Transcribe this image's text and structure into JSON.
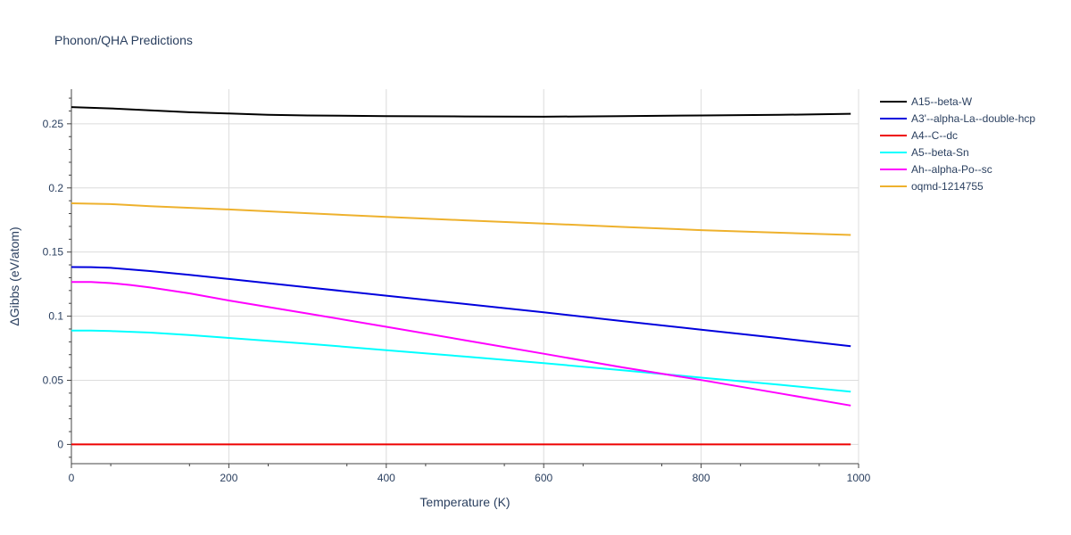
{
  "chart_data": {
    "type": "line",
    "title": "Phonon/QHA Predictions",
    "xlabel": "Temperature (K)",
    "ylabel": "ΔGibbs (eV/atom)",
    "xlim": [
      0,
      1000
    ],
    "ylim": [
      -0.015,
      0.277
    ],
    "x_ticks": [
      0,
      200,
      400,
      600,
      800,
      1000
    ],
    "x_tick_labels": [
      "0",
      "200",
      "400",
      "600",
      "800",
      "1000"
    ],
    "y_ticks": [
      0,
      0.05,
      0.1,
      0.15,
      0.2,
      0.25
    ],
    "y_tick_labels": [
      "0",
      "0.05",
      "0.1",
      "0.15",
      "0.2",
      "0.25"
    ],
    "grid": true,
    "legend_position": "top-right outside",
    "series": [
      {
        "name": "A15--beta-W",
        "color": "#000000",
        "x": [
          0,
          50,
          100,
          150,
          200,
          250,
          300,
          400,
          500,
          600,
          700,
          800,
          900,
          990
        ],
        "y": [
          0.263,
          0.262,
          0.2605,
          0.259,
          0.258,
          0.257,
          0.2565,
          0.256,
          0.2557,
          0.2555,
          0.256,
          0.2565,
          0.257,
          0.2578
        ]
      },
      {
        "name": "A3'--alpha-La--double-hcp",
        "color": "#0000dd",
        "x": [
          0,
          25,
          50,
          100,
          150,
          200,
          300,
          400,
          500,
          600,
          700,
          800,
          900,
          990
        ],
        "y": [
          0.1383,
          0.1382,
          0.1377,
          0.1352,
          0.1322,
          0.129,
          0.1225,
          0.116,
          0.1095,
          0.103,
          0.0962,
          0.0895,
          0.0828,
          0.0766
        ]
      },
      {
        "name": "A4--C--dc",
        "color": "#ee0000",
        "x": [
          0,
          200,
          400,
          600,
          800,
          990
        ],
        "y": [
          0,
          0,
          0,
          0,
          0,
          0
        ]
      },
      {
        "name": "A5--beta-Sn",
        "color": "#00ffff",
        "x": [
          0,
          25,
          50,
          100,
          150,
          200,
          300,
          400,
          500,
          600,
          700,
          800,
          900,
          990
        ],
        "y": [
          0.0888,
          0.0887,
          0.0884,
          0.0872,
          0.0853,
          0.083,
          0.0785,
          0.0735,
          0.0685,
          0.0634,
          0.0578,
          0.0521,
          0.0465,
          0.0412
        ]
      },
      {
        "name": "Ah--alpha-Po--sc",
        "color": "#ff00ff",
        "x": [
          0,
          25,
          50,
          75,
          100,
          150,
          200,
          300,
          400,
          500,
          600,
          700,
          800,
          900,
          990
        ],
        "y": [
          0.1267,
          0.1266,
          0.1258,
          0.1243,
          0.1224,
          0.1178,
          0.1122,
          0.1021,
          0.0917,
          0.0812,
          0.0707,
          0.0601,
          0.0502,
          0.0398,
          0.0303
        ]
      },
      {
        "name": "oqmd-1214755",
        "color": "#eeb12d",
        "x": [
          0,
          50,
          100,
          200,
          300,
          400,
          500,
          600,
          700,
          800,
          900,
          990
        ],
        "y": [
          0.188,
          0.1874,
          0.1858,
          0.1832,
          0.1803,
          0.1774,
          0.1747,
          0.1722,
          0.1696,
          0.1671,
          0.1651,
          0.1633
        ]
      }
    ]
  }
}
